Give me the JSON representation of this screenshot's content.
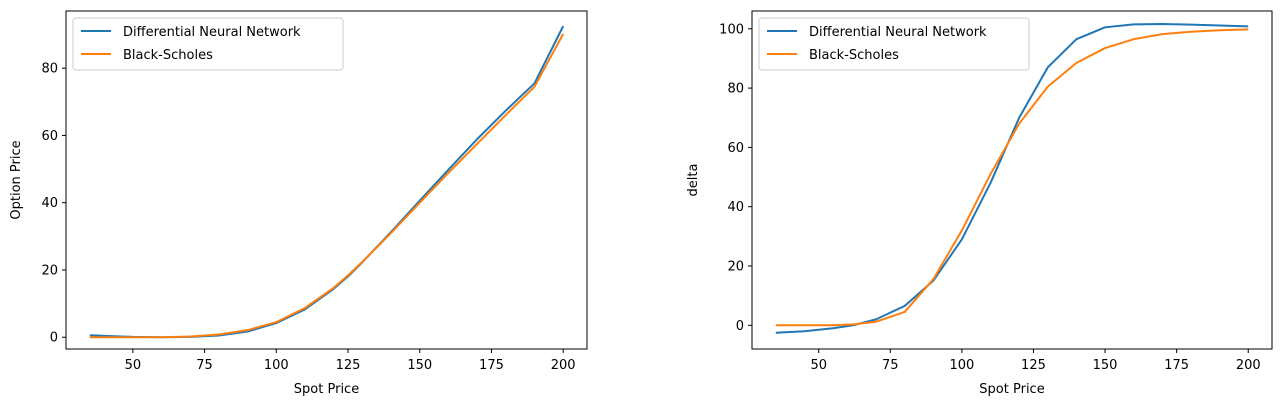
{
  "chart_data": [
    {
      "type": "line",
      "title": "",
      "xlabel": "Spot Price",
      "ylabel": "Option Price",
      "xlim": [
        26.7,
        208.3
      ],
      "ylim": [
        -3.5,
        97
      ],
      "xticks": [
        50,
        75,
        100,
        125,
        150,
        175,
        200
      ],
      "yticks": [
        0,
        20,
        40,
        60,
        80
      ],
      "grid": false,
      "legend": {
        "position": "upper-left"
      },
      "series": [
        {
          "name": "Differential Neural Network",
          "color": "#1f77b4",
          "points": [
            [
              35,
              0.6
            ],
            [
              40,
              0.4
            ],
            [
              50,
              0.1
            ],
            [
              60,
              0
            ],
            [
              70,
              0.1
            ],
            [
              80,
              0.5
            ],
            [
              90,
              1.7
            ],
            [
              100,
              4.2
            ],
            [
              110,
              8.3
            ],
            [
              120,
              14.4
            ],
            [
              125,
              18.1
            ],
            [
              130,
              22.3
            ],
            [
              140,
              31.3
            ],
            [
              150,
              40.6
            ],
            [
              160,
              49.8
            ],
            [
              170,
              58.9
            ],
            [
              180,
              67.4
            ],
            [
              190,
              75.5
            ],
            [
              200,
              92.5
            ]
          ]
        },
        {
          "name": "Black-Scholes",
          "color": "#ff7f0e",
          "points": [
            [
              35,
              0
            ],
            [
              50,
              0
            ],
            [
              60,
              0
            ],
            [
              70,
              0.2
            ],
            [
              80,
              0.8
            ],
            [
              90,
              2.1
            ],
            [
              100,
              4.5
            ],
            [
              110,
              8.7
            ],
            [
              120,
              14.7
            ],
            [
              125,
              18.4
            ],
            [
              130,
              22.4
            ],
            [
              140,
              31.0
            ],
            [
              150,
              40.0
            ],
            [
              160,
              48.9
            ],
            [
              170,
              57.5
            ],
            [
              180,
              66.1
            ],
            [
              190,
              74.5
            ],
            [
              200,
              90.2
            ]
          ]
        }
      ]
    },
    {
      "type": "line",
      "title": "",
      "xlabel": "Spot Price",
      "ylabel": "delta",
      "xlim": [
        26.7,
        208.3
      ],
      "ylim": [
        -8,
        106
      ],
      "xticks": [
        50,
        75,
        100,
        125,
        150,
        175,
        200
      ],
      "yticks": [
        0,
        20,
        40,
        60,
        80,
        100
      ],
      "grid": false,
      "legend": {
        "position": "upper-left"
      },
      "series": [
        {
          "name": "Differential Neural Network",
          "color": "#1f77b4",
          "points": [
            [
              35,
              -2.5
            ],
            [
              45,
              -2
            ],
            [
              55,
              -1
            ],
            [
              62,
              0
            ],
            [
              70,
              2
            ],
            [
              80,
              6.5
            ],
            [
              90,
              15
            ],
            [
              100,
              29
            ],
            [
              110,
              48
            ],
            [
              120,
              70
            ],
            [
              130,
              87
            ],
            [
              140,
              96.5
            ],
            [
              150,
              100.5
            ],
            [
              160,
              101.5
            ],
            [
              170,
              101.6
            ],
            [
              180,
              101.4
            ],
            [
              190,
              101.1
            ],
            [
              200,
              100.8
            ]
          ]
        },
        {
          "name": "Black-Scholes",
          "color": "#ff7f0e",
          "points": [
            [
              35,
              0
            ],
            [
              45,
              0
            ],
            [
              55,
              0
            ],
            [
              62,
              0.3
            ],
            [
              70,
              1.2
            ],
            [
              80,
              4.5
            ],
            [
              90,
              15.5
            ],
            [
              100,
              32
            ],
            [
              110,
              51
            ],
            [
              120,
              68
            ],
            [
              130,
              80.5
            ],
            [
              140,
              88.5
            ],
            [
              150,
              93.5
            ],
            [
              160,
              96.5
            ],
            [
              170,
              98.2
            ],
            [
              180,
              99
            ],
            [
              190,
              99.5
            ],
            [
              200,
              99.8
            ]
          ]
        }
      ]
    }
  ]
}
